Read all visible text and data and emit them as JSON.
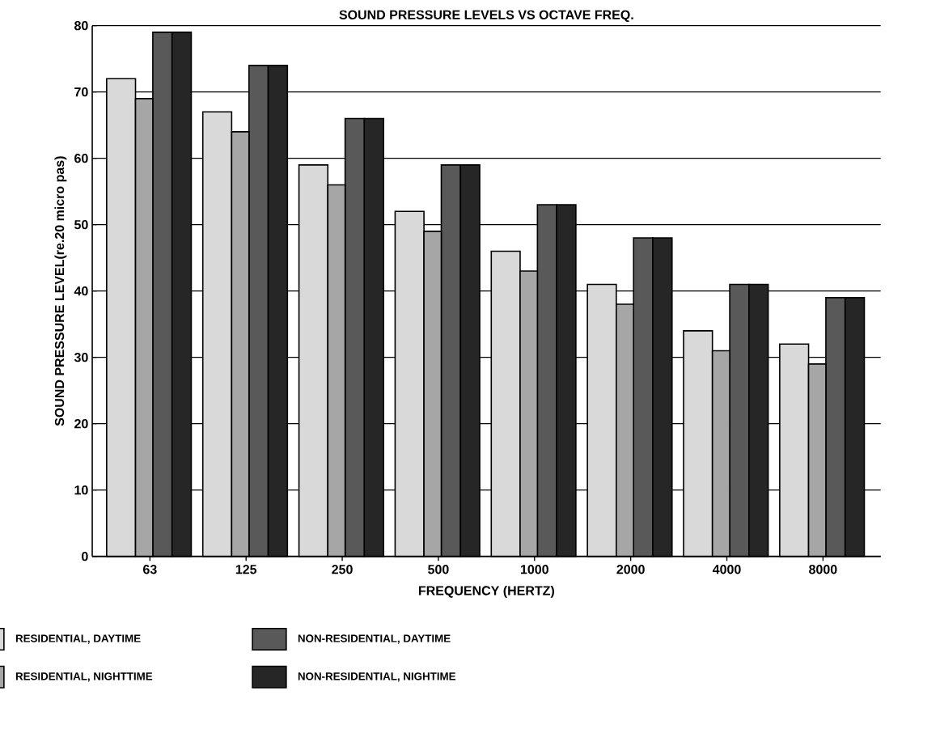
{
  "chart_data": {
    "type": "bar",
    "title": "SOUND PRESSURE LEVELS VS OCTAVE FREQ.",
    "xlabel": "FREQUENCY (HERTZ)",
    "ylabel": "SOUND PRESSURE LEVEL(re.20 micro pas)",
    "categories": [
      "63",
      "125",
      "250",
      "500",
      "1000",
      "2000",
      "4000",
      "8000"
    ],
    "series": [
      {
        "name": "RESIDENTIAL, DAYTIME",
        "color": "#d9d9d9",
        "values": [
          72,
          67,
          59,
          52,
          46,
          41,
          34,
          32
        ]
      },
      {
        "name": "NON-RESIDENTIAL, DAYTIME",
        "color": "#595959",
        "values": [
          79,
          74,
          66,
          59,
          53,
          48,
          41,
          39
        ]
      },
      {
        "name": "RESIDENTIAL, NIGHTTIME",
        "color": "#a6a6a6",
        "values": [
          69,
          64,
          56,
          49,
          43,
          38,
          31,
          29
        ]
      },
      {
        "name": "NON-RESIDENTIAL, NIGHTIME",
        "color": "#262626",
        "values": [
          79,
          74,
          66,
          59,
          53,
          48,
          41,
          39
        ]
      }
    ],
    "ylim": [
      0,
      80
    ],
    "yticks": [
      0,
      10,
      20,
      30,
      40,
      50,
      60,
      70,
      80
    ],
    "grid": "y",
    "legend": "bottom"
  }
}
